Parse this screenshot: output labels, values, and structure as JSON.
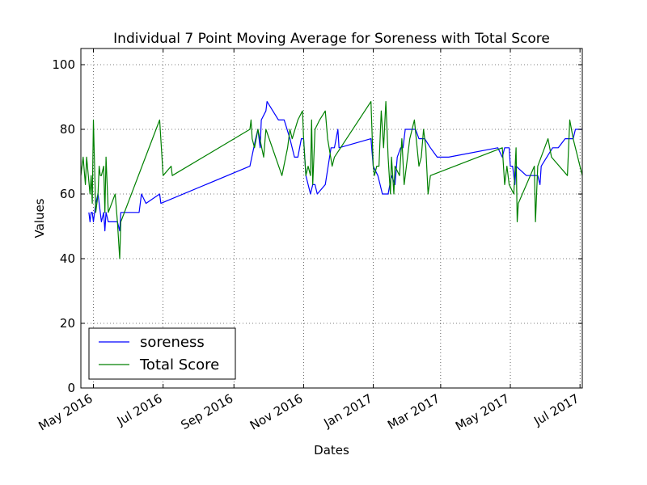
{
  "chart_data": {
    "type": "line",
    "title": "Individual 7 Point Moving Average for Soreness with Total Score",
    "xlabel": "Dates",
    "ylabel": "Values",
    "ylim": [
      0,
      105
    ],
    "xlim": [
      "2016-04-20",
      "2017-07-03"
    ],
    "x_ticks": [
      {
        "date": "2016-05-01",
        "label": "May 2016"
      },
      {
        "date": "2016-07-01",
        "label": "Jul 2016"
      },
      {
        "date": "2016-09-01",
        "label": "Sep 2016"
      },
      {
        "date": "2016-11-01",
        "label": "Nov 2016"
      },
      {
        "date": "2017-01-01",
        "label": "Jan 2017"
      },
      {
        "date": "2017-03-01",
        "label": "Mar 2017"
      },
      {
        "date": "2017-05-01",
        "label": "May 2017"
      },
      {
        "date": "2017-07-01",
        "label": "Jul 2017"
      }
    ],
    "y_ticks": [
      0,
      20,
      40,
      60,
      80,
      100
    ],
    "grid": true,
    "legend_position": "lower-left",
    "series": [
      {
        "name": "soreness",
        "color": "#0000ff",
        "points": [
          [
            "2016-04-27",
            54.3
          ],
          [
            "2016-04-28",
            51.4
          ],
          [
            "2016-04-29",
            54.3
          ],
          [
            "2016-04-30",
            54.3
          ],
          [
            "2016-05-01",
            51.4
          ],
          [
            "2016-05-03",
            57.1
          ],
          [
            "2016-05-05",
            60.0
          ],
          [
            "2016-05-07",
            54.3
          ],
          [
            "2016-05-08",
            51.4
          ],
          [
            "2016-05-10",
            54.3
          ],
          [
            "2016-05-11",
            48.6
          ],
          [
            "2016-05-12",
            54.3
          ],
          [
            "2016-05-14",
            51.4
          ],
          [
            "2016-05-20",
            51.4
          ],
          [
            "2016-05-22",
            51.4
          ],
          [
            "2016-05-24",
            48.6
          ],
          [
            "2016-05-25",
            54.3
          ],
          [
            "2016-06-10",
            54.3
          ],
          [
            "2016-06-12",
            60.0
          ],
          [
            "2016-06-16",
            57.1
          ],
          [
            "2016-06-28",
            60.0
          ],
          [
            "2016-06-29",
            57.1
          ],
          [
            "2016-09-15",
            68.6
          ],
          [
            "2016-09-20",
            77.1
          ],
          [
            "2016-09-22",
            80.0
          ],
          [
            "2016-09-24",
            74.3
          ],
          [
            "2016-09-25",
            82.9
          ],
          [
            "2016-09-29",
            85.7
          ],
          [
            "2016-09-30",
            88.6
          ],
          [
            "2016-10-10",
            82.9
          ],
          [
            "2016-10-15",
            82.9
          ],
          [
            "2016-10-20",
            77.1
          ],
          [
            "2016-10-24",
            71.4
          ],
          [
            "2016-10-27",
            71.4
          ],
          [
            "2016-10-30",
            77.1
          ],
          [
            "2016-11-01",
            77.1
          ],
          [
            "2016-11-03",
            65.7
          ],
          [
            "2016-11-05",
            62.9
          ],
          [
            "2016-11-07",
            60.0
          ],
          [
            "2016-11-09",
            62.9
          ],
          [
            "2016-11-11",
            62.9
          ],
          [
            "2016-11-13",
            60.0
          ],
          [
            "2016-11-20",
            62.9
          ],
          [
            "2016-11-25",
            74.3
          ],
          [
            "2016-11-28",
            74.3
          ],
          [
            "2016-12-01",
            80.0
          ],
          [
            "2016-12-02",
            74.3
          ],
          [
            "2016-12-30",
            77.1
          ],
          [
            "2017-01-01",
            68.6
          ],
          [
            "2017-01-05",
            65.7
          ],
          [
            "2017-01-07",
            62.9
          ],
          [
            "2017-01-09",
            60.0
          ],
          [
            "2017-01-14",
            60.0
          ],
          [
            "2017-01-17",
            65.7
          ],
          [
            "2017-01-20",
            62.9
          ],
          [
            "2017-01-22",
            71.4
          ],
          [
            "2017-01-25",
            74.3
          ],
          [
            "2017-01-27",
            74.3
          ],
          [
            "2017-01-29",
            80.0
          ],
          [
            "2017-02-07",
            80.0
          ],
          [
            "2017-02-10",
            77.1
          ],
          [
            "2017-02-15",
            77.1
          ],
          [
            "2017-02-20",
            74.3
          ],
          [
            "2017-02-26",
            71.4
          ],
          [
            "2017-03-08",
            71.4
          ],
          [
            "2017-04-20",
            74.3
          ],
          [
            "2017-04-24",
            71.4
          ],
          [
            "2017-04-26",
            74.3
          ],
          [
            "2017-04-30",
            74.3
          ],
          [
            "2017-05-01",
            68.6
          ],
          [
            "2017-05-03",
            68.6
          ],
          [
            "2017-05-05",
            62.9
          ],
          [
            "2017-05-06",
            68.6
          ],
          [
            "2017-05-15",
            65.7
          ],
          [
            "2017-05-25",
            65.7
          ],
          [
            "2017-05-27",
            62.9
          ],
          [
            "2017-05-28",
            68.6
          ],
          [
            "2017-06-07",
            74.3
          ],
          [
            "2017-06-12",
            74.3
          ],
          [
            "2017-06-18",
            77.1
          ],
          [
            "2017-06-25",
            77.1
          ],
          [
            "2017-06-27",
            80.0
          ],
          [
            "2017-07-03",
            80.0
          ]
        ]
      },
      {
        "name": "Total Score",
        "color": "#008000",
        "points": [
          [
            "2016-04-20",
            65.7
          ],
          [
            "2016-04-22",
            71.4
          ],
          [
            "2016-04-24",
            62.9
          ],
          [
            "2016-04-25",
            71.4
          ],
          [
            "2016-04-28",
            60.0
          ],
          [
            "2016-04-29",
            65.7
          ],
          [
            "2016-04-30",
            57.1
          ],
          [
            "2016-05-01",
            82.9
          ],
          [
            "2016-05-03",
            54.3
          ],
          [
            "2016-05-05",
            60.0
          ],
          [
            "2016-05-06",
            68.6
          ],
          [
            "2016-05-07",
            65.7
          ],
          [
            "2016-05-08",
            65.7
          ],
          [
            "2016-05-10",
            68.6
          ],
          [
            "2016-05-11",
            54.3
          ],
          [
            "2016-05-12",
            71.4
          ],
          [
            "2016-05-14",
            54.3
          ],
          [
            "2016-05-20",
            60.0
          ],
          [
            "2016-05-22",
            51.4
          ],
          [
            "2016-05-24",
            40.0
          ],
          [
            "2016-05-25",
            51.4
          ],
          [
            "2016-06-28",
            82.9
          ],
          [
            "2016-07-01",
            65.7
          ],
          [
            "2016-07-08",
            68.6
          ],
          [
            "2016-07-09",
            65.7
          ],
          [
            "2016-09-15",
            80.0
          ],
          [
            "2016-09-16",
            82.9
          ],
          [
            "2016-09-17",
            77.1
          ],
          [
            "2016-09-19",
            74.3
          ],
          [
            "2016-09-22",
            80.0
          ],
          [
            "2016-09-27",
            71.4
          ],
          [
            "2016-09-29",
            80.0
          ],
          [
            "2016-10-13",
            65.7
          ],
          [
            "2016-10-18",
            74.3
          ],
          [
            "2016-10-20",
            80.0
          ],
          [
            "2016-10-22",
            77.1
          ],
          [
            "2016-10-27",
            82.9
          ],
          [
            "2016-10-31",
            85.7
          ],
          [
            "2016-11-01",
            77.1
          ],
          [
            "2016-11-03",
            65.7
          ],
          [
            "2016-11-05",
            68.6
          ],
          [
            "2016-11-07",
            65.7
          ],
          [
            "2016-11-08",
            82.9
          ],
          [
            "2016-11-09",
            62.9
          ],
          [
            "2016-11-11",
            80.0
          ],
          [
            "2016-11-15",
            82.9
          ],
          [
            "2016-11-20",
            85.7
          ],
          [
            "2016-11-22",
            77.1
          ],
          [
            "2016-11-26",
            68.6
          ],
          [
            "2016-11-28",
            71.4
          ],
          [
            "2016-12-30",
            88.6
          ],
          [
            "2017-01-01",
            68.6
          ],
          [
            "2017-01-02",
            65.7
          ],
          [
            "2017-01-04",
            68.6
          ],
          [
            "2017-01-06",
            68.6
          ],
          [
            "2017-01-08",
            85.7
          ],
          [
            "2017-01-10",
            74.3
          ],
          [
            "2017-01-12",
            88.6
          ],
          [
            "2017-01-14",
            71.4
          ],
          [
            "2017-01-16",
            60.0
          ],
          [
            "2017-01-17",
            71.4
          ],
          [
            "2017-01-19",
            60.0
          ],
          [
            "2017-01-20",
            68.6
          ],
          [
            "2017-01-24",
            65.7
          ],
          [
            "2017-01-26",
            77.1
          ],
          [
            "2017-01-28",
            62.9
          ],
          [
            "2017-02-02",
            77.1
          ],
          [
            "2017-02-06",
            82.9
          ],
          [
            "2017-02-10",
            68.6
          ],
          [
            "2017-02-12",
            71.4
          ],
          [
            "2017-02-14",
            80.0
          ],
          [
            "2017-02-16",
            74.3
          ],
          [
            "2017-02-18",
            60.0
          ],
          [
            "2017-02-20",
            65.7
          ],
          [
            "2017-04-24",
            74.3
          ],
          [
            "2017-04-26",
            62.9
          ],
          [
            "2017-04-28",
            68.6
          ],
          [
            "2017-04-30",
            62.9
          ],
          [
            "2017-05-04",
            60.0
          ],
          [
            "2017-05-06",
            74.3
          ],
          [
            "2017-05-07",
            51.4
          ],
          [
            "2017-05-08",
            57.1
          ],
          [
            "2017-05-22",
            68.6
          ],
          [
            "2017-05-23",
            51.4
          ],
          [
            "2017-05-25",
            68.6
          ],
          [
            "2017-06-03",
            77.1
          ],
          [
            "2017-06-06",
            71.4
          ],
          [
            "2017-06-20",
            65.7
          ],
          [
            "2017-06-22",
            82.9
          ],
          [
            "2017-06-25",
            77.1
          ],
          [
            "2017-07-03",
            65.7
          ]
        ]
      }
    ]
  }
}
